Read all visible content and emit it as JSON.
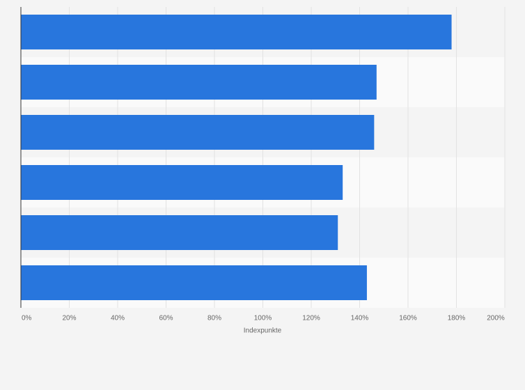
{
  "chart_data": {
    "type": "bar",
    "orientation": "horizontal",
    "categories": [
      null,
      null,
      null,
      null,
      null,
      null
    ],
    "values": [
      178,
      147,
      146,
      133,
      131,
      143
    ],
    "color": "#2876dd",
    "xlabel": "Indexpunkte",
    "xlim": [
      0,
      200
    ],
    "xticks": [
      {
        "value": 0,
        "label": "0%"
      },
      {
        "value": 20,
        "label": "20%"
      },
      {
        "value": 40,
        "label": "40%"
      },
      {
        "value": 60,
        "label": "60%"
      },
      {
        "value": 80,
        "label": "80%"
      },
      {
        "value": 100,
        "label": "100%"
      },
      {
        "value": 120,
        "label": "120%"
      },
      {
        "value": 140,
        "label": "140%"
      },
      {
        "value": 160,
        "label": "160%"
      },
      {
        "value": 180,
        "label": "180%"
      },
      {
        "value": 200,
        "label": "200%"
      }
    ],
    "grid": true
  }
}
